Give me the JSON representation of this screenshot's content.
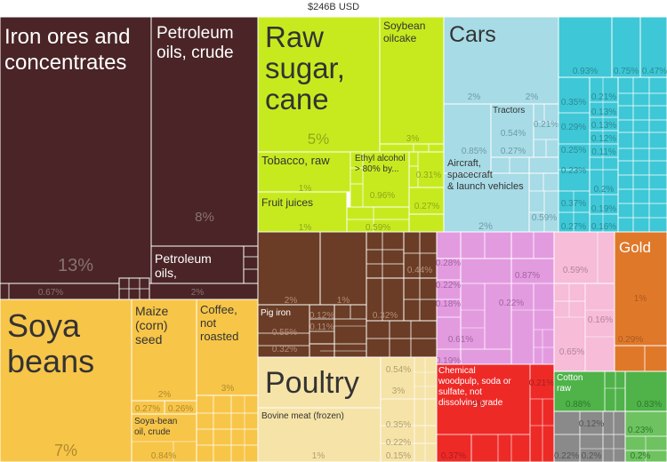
{
  "header": {
    "total": "$246B USD"
  },
  "colors": {
    "minerals": "#4a2426",
    "sugar_tobacco": "#c7ea1f",
    "machinery": "#a7dbe6",
    "metals_cyan": "#3ec7d6",
    "meat": "#6b3d26",
    "vegetable": "#f7c548",
    "animal": "#f6e3a8",
    "chemicals_pink": "#e39be0",
    "misc_pink": "#f6bcd8",
    "gold": "#e0782a",
    "red": "#ee2a27",
    "textiles": "#4fb34a",
    "grey": "#8a8a8a",
    "green_light": "#6ec260"
  },
  "chart_data": {
    "type": "treemap",
    "title": "$246B USD",
    "blocks": [
      {
        "name": "Iron ores and concentrates",
        "share": "13%",
        "color": "minerals"
      },
      {
        "name": "Petroleum oils, crude",
        "share": "8%",
        "color": "minerals"
      },
      {
        "name": "Petroleum oils, refined",
        "share": "2%",
        "color": "minerals"
      },
      {
        "name": "",
        "share": "0.67%",
        "color": "minerals"
      },
      {
        "name": "Raw sugar, cane",
        "share": "5%",
        "color": "sugar_tobacco"
      },
      {
        "name": "Soybean oilcake",
        "share": "3%",
        "color": "sugar_tobacco"
      },
      {
        "name": "Tobacco, raw",
        "share": "1%",
        "color": "sugar_tobacco"
      },
      {
        "name": "Ethyl alcohol > 80% by...",
        "share": "0.96%",
        "color": "sugar_tobacco"
      },
      {
        "name": "",
        "share": "0.31%",
        "color": "sugar_tobacco"
      },
      {
        "name": "",
        "share": "0.27%",
        "color": "sugar_tobacco"
      },
      {
        "name": "Fruit juices",
        "share": "1%",
        "color": "sugar_tobacco"
      },
      {
        "name": "",
        "share": "0.59%",
        "color": "sugar_tobacco"
      },
      {
        "name": "Cars",
        "share": "2%",
        "color": "machinery"
      },
      {
        "name": "Tractors",
        "share": "0.54%",
        "color": "machinery"
      },
      {
        "name": "Aircraft, spacecraft & launch vehicles",
        "share": "2%",
        "color": "machinery"
      },
      {
        "name": "Gold",
        "share": "1%",
        "color": "gold"
      },
      {
        "name": "Soya beans",
        "share": "7%",
        "color": "vegetable"
      },
      {
        "name": "Maize (corn) seed",
        "share": "2%",
        "color": "vegetable"
      },
      {
        "name": "Coffee, not roasted",
        "share": "3%",
        "color": "vegetable"
      },
      {
        "name": "Soya-bean oil, crude",
        "share": "0.84%",
        "color": "vegetable"
      },
      {
        "name": "Pig iron",
        "share": "0.55%",
        "color": "meat"
      },
      {
        "name": "Poultry",
        "share": "3%",
        "color": "animal"
      },
      {
        "name": "Bovine meat (frozen)",
        "share": "1%",
        "color": "animal"
      },
      {
        "name": "Chemical woodpulp, soda or sulfate, not dissolving grade",
        "share": "2%",
        "color": "red"
      },
      {
        "name": "Cotton raw",
        "share": "0.88%",
        "color": "textiles"
      }
    ],
    "labels": {
      "iron": "Iron ores and concentrates",
      "iron_pct": "13%",
      "petroleum_crude": "Petroleum oils, crude",
      "petroleum_crude_pct": "8%",
      "petroleum_refined": "Petroleum oils, refined",
      "petroleum_refined_pct": "2%",
      "minerals_small_pct": "0.67%",
      "sugar": "Raw sugar, cane",
      "sugar_pct": "5%",
      "oilcake": "Soybean oilcake",
      "oilcake_pct": "3%",
      "tobacco": "Tobacco, raw",
      "tobacco_pct": "1%",
      "ethyl": "Ethyl alcohol > 80% by...",
      "ethyl_pct": "0.96%",
      "fruit": "Fruit juices",
      "fruit_pct": "1%",
      "cars": "Cars",
      "cars_pct": "2%",
      "tractors": "Tractors",
      "tractors_pct": "0.54%",
      "aircraft": "Aircraft, spacecraft & launch vehicles",
      "aircraft_pct": "2%",
      "gold": "Gold",
      "gold_pct": "1%",
      "soya": "Soya beans",
      "soya_pct": "7%",
      "maize": "Maize (corn) seed",
      "maize_pct": "2%",
      "coffee": "Coffee, not roasted",
      "coffee_pct": "3%",
      "soyoil": "Soya-bean oil, crude",
      "soyoil_pct": "0.84%",
      "pigiron": "Pig iron",
      "pigiron_pct": "0.55%",
      "poultry": "Poultry",
      "poultry_pct": "3%",
      "bovine": "Bovine meat (frozen)",
      "bovine_pct": "1%",
      "woodpulp": "Chemical woodpulp, soda or sulfate, not dissolving grade",
      "woodpulp_pct": "2%",
      "cotton": "Cotton raw",
      "cotton_pct": "0.88%"
    },
    "small_values": [
      "0.93%",
      "0.75%",
      "0.47%",
      "0.35%",
      "0.21%",
      "0.13%",
      "0.29%",
      "0.13%",
      "0.12%",
      "0.25%",
      "0.11%",
      "0.23%",
      "0.2%",
      "0.37%",
      "0.19%",
      "0.27%",
      "0.16%",
      "0.85%",
      "0.27%",
      "0.21%",
      "0.59%",
      "2%",
      "2%",
      "0.28%",
      "0.22%",
      "0.18%",
      "0.61%",
      "0.19%",
      "0.87%",
      "0.22%",
      "0.59%",
      "0.16%",
      "0.65%",
      "0.29%",
      "0.44%",
      "0.32%",
      "0.32%",
      "0.12%",
      "0.11%",
      "0.55%",
      "2%",
      "1%",
      "0.54%",
      "0.35%",
      "0.22%",
      "0.15%",
      "0.27%",
      "0.26%",
      "0.21%",
      "0.37%",
      "0.22%",
      "0.12%",
      "0.83%",
      "0.23%",
      "0.2%",
      "0.2%"
    ]
  }
}
